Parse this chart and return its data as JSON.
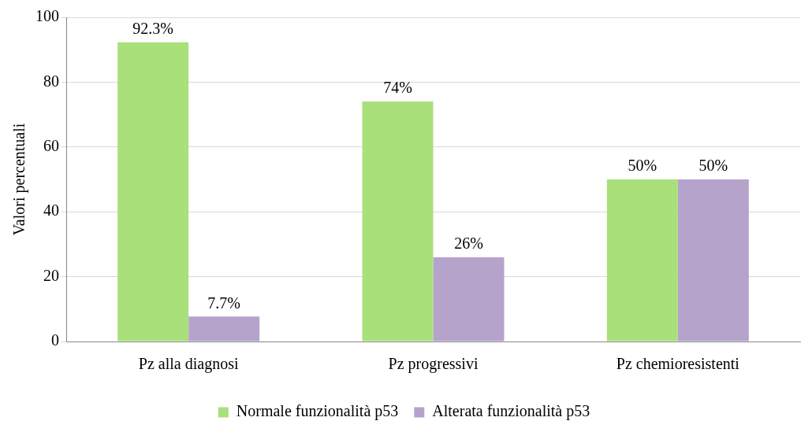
{
  "chart_data": {
    "type": "bar",
    "ylabel": "Valori percentuali",
    "categories": [
      "Pz alla diagnosi",
      "Pz progressivi",
      "Pz chemioresistenti"
    ],
    "series": [
      {
        "name": "Normale funzionalità p53",
        "color": "#a9e07a",
        "values": [
          92.3,
          74,
          50
        ],
        "value_labels": [
          "92.3%",
          "74%",
          "50%"
        ]
      },
      {
        "name": "Alterata funzionalità p53",
        "color": "#b5a3cc",
        "values": [
          7.7,
          26,
          50
        ],
        "value_labels": [
          "7.7%",
          "26%",
          "50%"
        ]
      }
    ],
    "ylim": [
      0,
      100
    ],
    "yticks": [
      0,
      20,
      40,
      60,
      80,
      100
    ],
    "grid": "y",
    "legend": "bottom"
  }
}
